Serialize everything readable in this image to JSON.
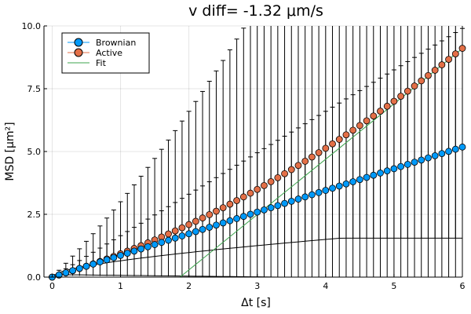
{
  "chart_data": {
    "type": "scatter",
    "title": "v diff= -1.32 μm/s",
    "xlabel": "Δt [s]",
    "ylabel": "MSD [μm²]",
    "xlim": [
      -0.12,
      6.0
    ],
    "ylim": [
      0,
      10
    ],
    "x_ticks": [
      0,
      1,
      2,
      3,
      4,
      5,
      6
    ],
    "y_ticks": [
      0.0,
      2.5,
      5.0,
      7.5,
      10.0
    ],
    "x_tick_labels": [
      "0",
      "1",
      "2",
      "3",
      "4",
      "5",
      "6"
    ],
    "y_tick_labels": [
      "0.0",
      "2.5",
      "5.0",
      "7.5",
      "10.0"
    ],
    "grid": true,
    "legend_position": "top-left",
    "lag_step": 0.1,
    "series": [
      {
        "name": "Brownian",
        "color": "#009AFA",
        "marker": "circle",
        "x_start": 0.0,
        "x_end": 6.0,
        "y_at_start": 0.0,
        "y_per_second": 0.863,
        "errorbar_lower_y_at_end": 0.0,
        "errorbar_upper_y_at_1s": 1.65,
        "errorbar_upper_y_at_2s": 3.3
      },
      {
        "name": "Active",
        "color": "#E36F47",
        "marker": "circle",
        "x_start": 0.0,
        "x_end": 6.0,
        "y_quadratic_coeff": 0.118,
        "y_linear_coeff": 0.81,
        "errorbar_upper_y_at_1s": 2.7,
        "errorbar_upper_y_at_2s": 6.0,
        "errorbar_upper_y_at_3s": 8.8,
        "errorbar_lower_y_at_6s": 1.55
      },
      {
        "name": "Fit",
        "color": "#3EA44E",
        "marker": "none",
        "type": "line",
        "x_start": 1.87,
        "x_end": 6.0,
        "y_start": 0.0,
        "y_end": 9.1
      }
    ]
  }
}
